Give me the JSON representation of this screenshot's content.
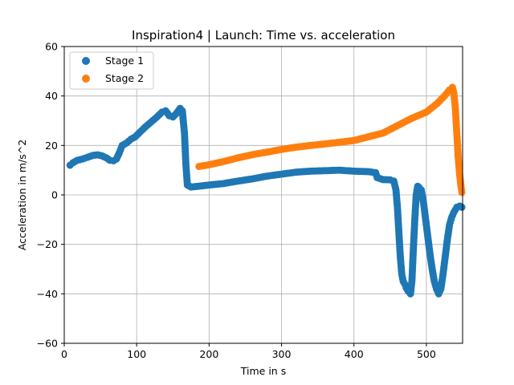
{
  "chart_data": {
    "type": "scatter",
    "title": "Inspiration4 | Launch: Time vs. acceleration",
    "xlabel": "Time in s",
    "ylabel": "Acceleration in m/s^2",
    "xlim": [
      0,
      550
    ],
    "ylim": [
      -60,
      60
    ],
    "x_ticks": [
      "0",
      "100",
      "200",
      "300",
      "400",
      "500"
    ],
    "y_ticks": [
      "−60",
      "−40",
      "−20",
      "0",
      "20",
      "40",
      "60"
    ],
    "grid": true,
    "legend": "top-left",
    "series": [
      {
        "name": "Stage 1",
        "color": "#1f77b4",
        "points": [
          [
            8,
            12
          ],
          [
            12,
            13
          ],
          [
            18,
            14
          ],
          [
            25,
            14.5
          ],
          [
            32,
            15.2
          ],
          [
            40,
            16
          ],
          [
            46,
            16.2
          ],
          [
            52,
            15.8
          ],
          [
            58,
            15
          ],
          [
            63,
            14
          ],
          [
            68,
            13.8
          ],
          [
            72,
            14.5
          ],
          [
            76,
            17
          ],
          [
            80,
            20
          ],
          [
            86,
            21
          ],
          [
            92,
            22.5
          ],
          [
            98,
            23.5
          ],
          [
            105,
            25.5
          ],
          [
            112,
            27.5
          ],
          [
            120,
            29.5
          ],
          [
            128,
            31.5
          ],
          [
            135,
            33.5
          ],
          [
            140,
            34
          ],
          [
            145,
            32
          ],
          [
            150,
            31.5
          ],
          [
            155,
            33
          ],
          [
            160,
            35
          ],
          [
            163,
            34
          ],
          [
            166,
            25
          ],
          [
            168,
            12
          ],
          [
            170,
            4
          ],
          [
            175,
            3.2
          ],
          [
            185,
            3.5
          ],
          [
            200,
            4
          ],
          [
            220,
            4.6
          ],
          [
            240,
            5.6
          ],
          [
            260,
            6.5
          ],
          [
            280,
            7.6
          ],
          [
            300,
            8.4
          ],
          [
            320,
            9.2
          ],
          [
            340,
            9.6
          ],
          [
            360,
            9.8
          ],
          [
            380,
            10
          ],
          [
            400,
            9.6
          ],
          [
            420,
            9.4
          ],
          [
            430,
            9
          ],
          [
            432,
            7
          ],
          [
            440,
            6.2
          ],
          [
            450,
            6.1
          ],
          [
            455,
            5.6
          ],
          [
            458,
            2
          ],
          [
            460,
            -5
          ],
          [
            462,
            -15
          ],
          [
            464,
            -25
          ],
          [
            466,
            -32
          ],
          [
            468,
            -35
          ],
          [
            470,
            -36
          ],
          [
            472,
            -37.5
          ],
          [
            475,
            -39
          ],
          [
            478,
            -40
          ],
          [
            480,
            -35
          ],
          [
            482,
            -22
          ],
          [
            484,
            -10
          ],
          [
            486,
            0
          ],
          [
            488,
            3.5
          ],
          [
            490,
            3
          ],
          [
            493,
            2
          ],
          [
            496,
            -3
          ],
          [
            499,
            -10
          ],
          [
            502,
            -17
          ],
          [
            505,
            -24
          ],
          [
            508,
            -30
          ],
          [
            511,
            -35
          ],
          [
            514,
            -38
          ],
          [
            517,
            -40
          ],
          [
            520,
            -38
          ],
          [
            523,
            -32
          ],
          [
            526,
            -25
          ],
          [
            529,
            -18
          ],
          [
            532,
            -12
          ],
          [
            535,
            -9
          ],
          [
            538,
            -7
          ],
          [
            542,
            -5
          ],
          [
            546,
            -4.5
          ],
          [
            549,
            -5
          ]
        ]
      },
      {
        "name": "Stage 2",
        "color": "#ff7f0e",
        "points": [
          [
            186,
            11.5
          ],
          [
            200,
            12.2
          ],
          [
            220,
            13.5
          ],
          [
            240,
            15
          ],
          [
            260,
            16.3
          ],
          [
            280,
            17.3
          ],
          [
            300,
            18.4
          ],
          [
            320,
            19.3
          ],
          [
            340,
            20
          ],
          [
            360,
            20.6
          ],
          [
            380,
            21.3
          ],
          [
            400,
            22
          ],
          [
            420,
            23.5
          ],
          [
            440,
            25
          ],
          [
            460,
            28
          ],
          [
            480,
            31
          ],
          [
            500,
            33.5
          ],
          [
            515,
            37
          ],
          [
            525,
            40
          ],
          [
            532,
            42.5
          ],
          [
            536,
            43.5
          ],
          [
            538,
            41
          ],
          [
            540,
            35
          ],
          [
            542,
            25
          ],
          [
            544,
            15
          ],
          [
            546,
            8
          ],
          [
            548,
            3
          ],
          [
            549,
            1
          ]
        ]
      }
    ]
  }
}
